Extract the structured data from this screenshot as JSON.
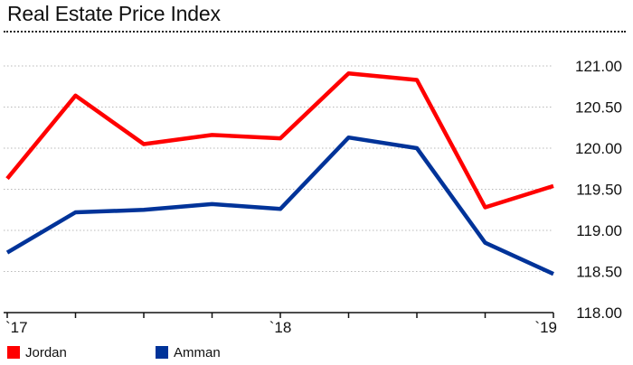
{
  "title": "Real Estate Price Index",
  "chart_data": {
    "type": "line",
    "title": "Real Estate Price Index",
    "x_tick_labels": [
      "`17",
      "`18",
      "`19"
    ],
    "x_tick_positions": [
      0,
      4,
      8
    ],
    "ylim": [
      118.0,
      121.0
    ],
    "y_ticks": [
      118.0,
      118.5,
      119.0,
      119.5,
      120.0,
      120.5,
      121.0
    ],
    "y_tick_labels": [
      "118.00",
      "118.50",
      "119.00",
      "119.50",
      "120.00",
      "120.50",
      "121.00"
    ],
    "y_axis_side": "right",
    "grid": "horizontal",
    "legend_position": "bottom-left",
    "series": [
      {
        "name": "Jordan",
        "color": "#ff0000",
        "values": [
          119.63,
          120.64,
          120.05,
          120.16,
          120.12,
          120.91,
          120.83,
          119.28,
          119.54
        ]
      },
      {
        "name": "Amman",
        "color": "#003399",
        "values": [
          118.73,
          119.22,
          119.25,
          119.32,
          119.26,
          120.13,
          120.0,
          118.85,
          118.47
        ]
      }
    ]
  }
}
